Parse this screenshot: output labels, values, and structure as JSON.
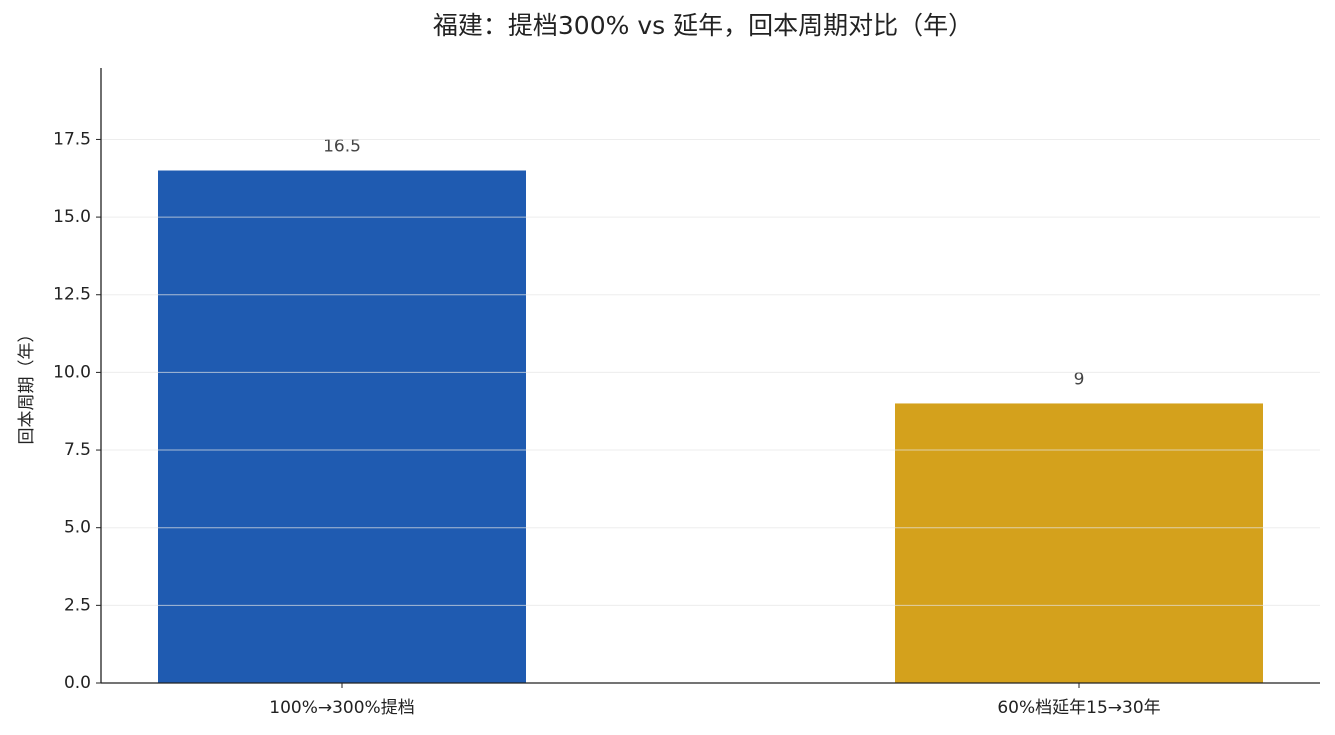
{
  "chart_data": {
    "type": "bar",
    "title": "福建：提档300% vs 延年，回本周期对比（年）",
    "y_label": "回本周期（年）",
    "categories": [
      "100%→300%提档",
      "60%档延年15→30年"
    ],
    "values": [
      16.5,
      9
    ],
    "colors": [
      "#1f5bb1",
      "#d4a11c"
    ],
    "ylim": [
      0,
      19.8
    ],
    "yticks": [
      {
        "value": 0,
        "label": "0.0"
      },
      {
        "value": 2.5,
        "label": "2.5"
      },
      {
        "value": 5,
        "label": "5.0"
      },
      {
        "value": 7.5,
        "label": "7.5"
      },
      {
        "value": 10,
        "label": "10.0"
      },
      {
        "value": 12.5,
        "label": "12.5"
      },
      {
        "value": 15,
        "label": "15.0"
      },
      {
        "value": 17.5,
        "label": "17.5"
      }
    ],
    "grid": true
  }
}
